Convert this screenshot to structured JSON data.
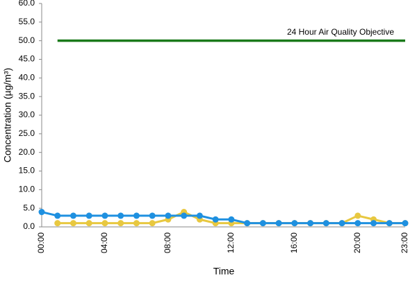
{
  "chart_data": {
    "type": "line",
    "xlabel": "Time",
    "ylabel": "Concentration (µg/m³)",
    "annotation": "24 Hour Air Quality Objective",
    "categories": [
      "00:00",
      null,
      null,
      null,
      "04:00",
      null,
      null,
      null,
      "08:00",
      null,
      null,
      null,
      "12:00",
      null,
      null,
      null,
      "16:00",
      null,
      null,
      null,
      "20:00",
      null,
      null,
      "23:00"
    ],
    "series": [
      {
        "color": "#1a7a1a",
        "marker": false,
        "values": [
          null,
          50,
          50,
          50,
          50,
          50,
          50,
          50,
          50,
          50,
          50,
          50,
          50,
          50,
          50,
          50,
          50,
          50,
          50,
          50,
          50,
          50,
          50,
          50
        ]
      },
      {
        "color": "#e8c840",
        "marker": true,
        "values": [
          null,
          1,
          1,
          1,
          1,
          1,
          1,
          1,
          2,
          4,
          2,
          1,
          1,
          1,
          1,
          1,
          1,
          1,
          1,
          1,
          3,
          2,
          1,
          1
        ]
      },
      {
        "color": "#1e90e0",
        "marker": true,
        "values": [
          4,
          3,
          3,
          3,
          3,
          3,
          3,
          3,
          3,
          3,
          3,
          2,
          2,
          1,
          1,
          1,
          1,
          1,
          1,
          1,
          1,
          1,
          1,
          1
        ]
      }
    ],
    "ylim": [
      0,
      60
    ],
    "yticks": [
      {
        "value": 0,
        "label": "0.0"
      },
      {
        "value": 5,
        "label": "5.0"
      },
      {
        "value": 10,
        "label": "10.0"
      },
      {
        "value": 15,
        "label": "15.0"
      },
      {
        "value": 20,
        "label": "20.0"
      },
      {
        "value": 25,
        "label": "25.0"
      },
      {
        "value": 30,
        "label": "30.0"
      },
      {
        "value": 35,
        "label": "35.0"
      },
      {
        "value": 40,
        "label": "40.0"
      },
      {
        "value": 45,
        "label": "45.0"
      },
      {
        "value": 50,
        "label": "50.0"
      },
      {
        "value": 55,
        "label": "55.0"
      },
      {
        "value": 60,
        "label": "60.0"
      }
    ],
    "grid": false
  }
}
